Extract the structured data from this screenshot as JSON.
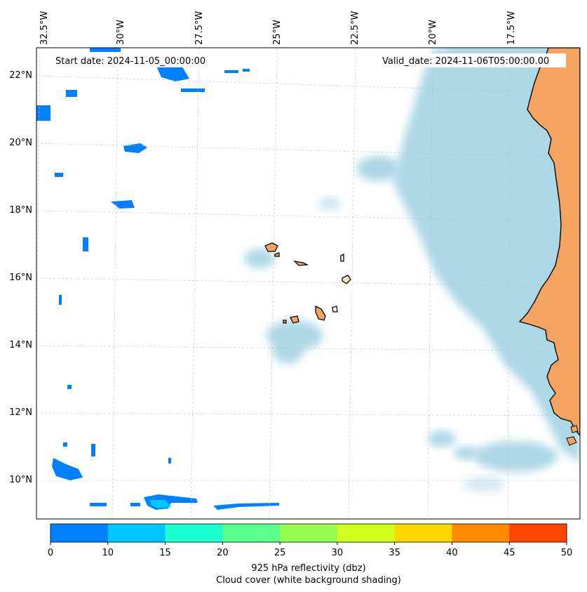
{
  "map": {
    "start_label": "Start date: 2024-11-05_00:00:00",
    "valid_label": "Valid_date: 2024-11-06T05:00:00.00",
    "lon_labels": [
      "32.5°W",
      "30°W",
      "27.5°W",
      "25°W",
      "22.5°W",
      "20°W",
      "17.5°W"
    ],
    "lat_labels": [
      "22°N",
      "20°N",
      "18°N",
      "16°N",
      "14°N",
      "12°N",
      "10°N"
    ],
    "extent": {
      "lon_min": -32.7,
      "lon_max": -15.4,
      "lat_min": 8.9,
      "lat_max": 22.8
    },
    "layers": [
      {
        "name": "cloud cover",
        "color": "#add8e6",
        "note": "white background shading"
      },
      {
        "name": "land",
        "color": "#f4a460"
      }
    ]
  },
  "colorbar": {
    "ticks": [
      "0",
      "10",
      "15",
      "20",
      "25",
      "30",
      "35",
      "40",
      "45",
      "50"
    ],
    "colors": [
      "#0080ff",
      "#00c8ff",
      "#1effd2",
      "#5aff8c",
      "#96ff50",
      "#d2ff1e",
      "#ffd700",
      "#ff8c00",
      "#ff4500"
    ],
    "label_line1": "925 hPa reflectivity (dbz)",
    "label_line2": "Cloud cover (white background shading)"
  }
}
